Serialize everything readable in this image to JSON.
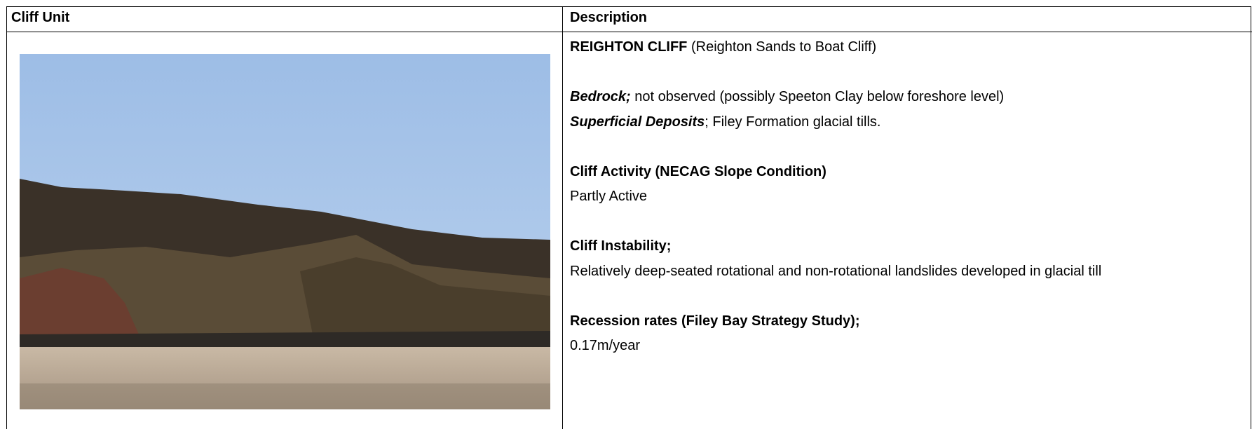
{
  "table": {
    "header": [
      "Cliff Unit",
      "Description"
    ],
    "description": {
      "title": "REIGHTON CLIFF",
      "title_note": "(Reighton Sands to Boat Cliff)",
      "bedrock": {
        "label": "Bedrock;",
        "text": "not observed (possibly Speeton Clay below foreshore level)"
      },
      "superficial": {
        "label": "Superficial Deposits",
        "text": "; Filey Formation glacial tills."
      },
      "sections": [
        {
          "heading": "Cliff Activity (NECAG Slope Condition)",
          "text": "Partly Active"
        },
        {
          "heading": "Cliff Instability;",
          "text": "Relatively deep-seated rotational and non-rotational landslides developed in glacial till"
        },
        {
          "heading": "Recession rates (Filey Bay Strategy Study);",
          "text": "0.17m/year"
        }
      ]
    }
  }
}
